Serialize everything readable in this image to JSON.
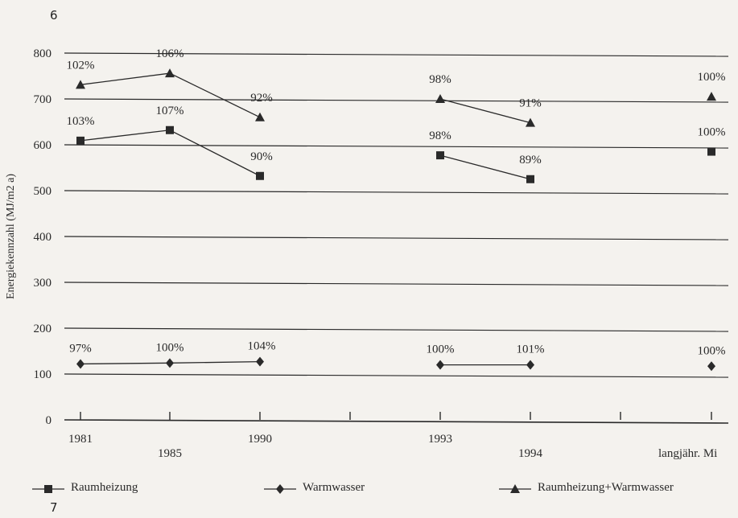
{
  "page": {
    "number_top": "6",
    "number_bottom": "7"
  },
  "chart_data": {
    "type": "line",
    "ylabel": "Energiekennzahl (MJ/m2 a)",
    "ylim": [
      0,
      800
    ],
    "yticks": [
      "0",
      "100",
      "200",
      "300",
      "400",
      "500",
      "600",
      "700",
      "800"
    ],
    "grid": true,
    "categories": [
      "1981",
      "1985",
      "1990",
      "1993",
      "1994",
      "langjähr. Mi"
    ],
    "series": [
      {
        "name": "Raumheizung",
        "marker": "square",
        "values": [
          609,
          632,
          532,
          577,
          525,
          585
        ],
        "labels": [
          "103%",
          "107%",
          "90%",
          "98%",
          "89%",
          "100%"
        ]
      },
      {
        "name": "Warmwasser",
        "marker": "diamond",
        "values": [
          122,
          124,
          127,
          120,
          120,
          117
        ],
        "labels": [
          "97%",
          "100%",
          "104%",
          "100%",
          "101%",
          "100%"
        ]
      },
      {
        "name": "Raumheizung+Warmwasser",
        "marker": "triangle",
        "values": [
          731,
          756,
          660,
          700,
          648,
          705
        ],
        "labels": [
          "102%",
          "106%",
          "92%",
          "98%",
          "91%",
          "100%"
        ]
      }
    ],
    "legend_position": "bottom"
  }
}
